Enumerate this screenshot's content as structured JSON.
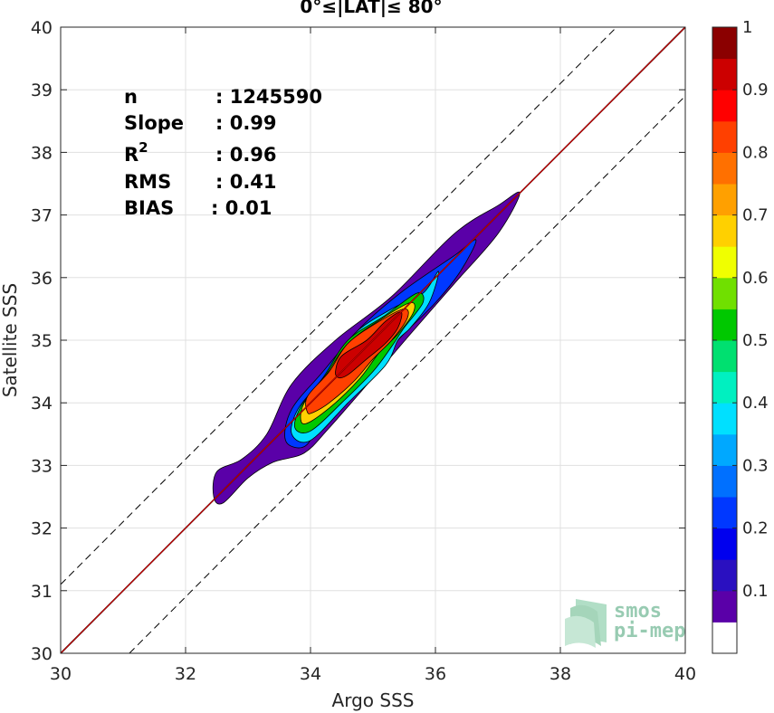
{
  "chart_data": {
    "type": "contour",
    "title": "0°≤|LAT|≤ 80°",
    "xlabel": "Argo SSS",
    "ylabel": "Satellite SSS",
    "xlim": [
      30,
      40
    ],
    "ylim": [
      30,
      40
    ],
    "xticks": [
      "30",
      "32",
      "34",
      "36",
      "38",
      "40"
    ],
    "yticks": [
      "30",
      "31",
      "32",
      "33",
      "34",
      "35",
      "36",
      "37",
      "38",
      "39",
      "40"
    ],
    "grid": true,
    "stats": {
      "n_label": "n",
      "n_value": ": 1245590",
      "slope_label": "Slope",
      "slope_value": ": 0.99",
      "r2_label": "R",
      "r2_sup": "2",
      "r2_value": ": 0.96",
      "rms_label": "RMS",
      "rms_value": ": 0.41",
      "bias_label": "BIAS",
      "bias_value": ": 0.01"
    },
    "lines": {
      "identity": {
        "x": [
          30,
          40
        ],
        "y": [
          30,
          40
        ],
        "color": "#cc0000"
      },
      "upper_dashed": {
        "x": [
          30,
          38.9
        ],
        "y": [
          31.1,
          40
        ],
        "color": "#000000"
      },
      "lower_dashed": {
        "x": [
          31.1,
          40
        ],
        "y": [
          30,
          38.9
        ],
        "color": "#000000"
      }
    },
    "colorbar": {
      "range": [
        0,
        1
      ],
      "levels": [
        0.05,
        0.1,
        0.15,
        0.2,
        0.25,
        0.3,
        0.35,
        0.4,
        0.45,
        0.5,
        0.55,
        0.6,
        0.65,
        0.7,
        0.75,
        0.8,
        0.85,
        0.9,
        0.95,
        1.0
      ],
      "tick_labels": [
        "0.1",
        "0.2",
        "0.3",
        "0.4",
        "0.5",
        "0.6",
        "0.7",
        "0.8",
        "0.9",
        "1"
      ],
      "colors": [
        "#ffffff",
        "#5a00a8",
        "#2a10c0",
        "#0000ee",
        "#0038ff",
        "#0070ff",
        "#00a8ff",
        "#00e0ff",
        "#00f0c0",
        "#00e070",
        "#00c800",
        "#70e000",
        "#f0ff00",
        "#ffd000",
        "#ffa000",
        "#ff7000",
        "#ff4000",
        "#ff0000",
        "#cc0000",
        "#8b0000"
      ]
    },
    "contours": [
      {
        "level": 0.05,
        "outline": [
          [
            32.45,
            32.5
          ],
          [
            32.5,
            32.9
          ],
          [
            32.9,
            33.1
          ],
          [
            33.3,
            33.5
          ],
          [
            33.7,
            34.3
          ],
          [
            34.4,
            35.0
          ],
          [
            35.3,
            35.7
          ],
          [
            36.3,
            36.7
          ],
          [
            37.0,
            37.15
          ],
          [
            37.35,
            37.35
          ],
          [
            37.0,
            36.7
          ],
          [
            36.3,
            35.9
          ],
          [
            35.6,
            35.1
          ],
          [
            35.0,
            34.4
          ],
          [
            34.3,
            33.6
          ],
          [
            33.9,
            33.2
          ],
          [
            33.4,
            33.05
          ],
          [
            33.0,
            32.8
          ],
          [
            32.6,
            32.4
          ]
        ]
      },
      {
        "level": 0.2,
        "outline": [
          [
            33.6,
            33.4
          ],
          [
            33.7,
            33.9
          ],
          [
            34.2,
            34.5
          ],
          [
            34.8,
            35.2
          ],
          [
            35.5,
            35.8
          ],
          [
            36.3,
            36.35
          ],
          [
            36.65,
            36.6
          ],
          [
            36.4,
            36.1
          ],
          [
            36.0,
            35.6
          ],
          [
            35.4,
            35.0
          ],
          [
            34.8,
            34.3
          ],
          [
            34.2,
            33.7
          ],
          [
            33.9,
            33.3
          ]
        ]
      },
      {
        "level": 0.35,
        "outline": [
          [
            33.7,
            33.5
          ],
          [
            33.8,
            33.9
          ],
          [
            34.2,
            34.4
          ],
          [
            34.7,
            35.1
          ],
          [
            35.3,
            35.5
          ],
          [
            35.8,
            35.75
          ],
          [
            36.05,
            36.1
          ],
          [
            35.9,
            35.6
          ],
          [
            35.6,
            35.2
          ],
          [
            35.4,
            35.0
          ],
          [
            35.2,
            34.6
          ],
          [
            34.6,
            34.0
          ],
          [
            34.0,
            33.4
          ]
        ]
      },
      {
        "level": 0.5,
        "outline": [
          [
            33.75,
            33.6
          ],
          [
            33.85,
            33.95
          ],
          [
            34.2,
            34.4
          ],
          [
            34.6,
            35.0
          ],
          [
            35.2,
            35.4
          ],
          [
            35.7,
            35.75
          ],
          [
            35.8,
            35.6
          ],
          [
            35.5,
            35.2
          ],
          [
            35.3,
            34.9
          ],
          [
            35.0,
            34.5
          ],
          [
            34.5,
            34.0
          ],
          [
            34.0,
            33.55
          ]
        ]
      },
      {
        "level": 0.65,
        "outline": [
          [
            33.85,
            33.7
          ],
          [
            33.9,
            34.0
          ],
          [
            34.25,
            34.45
          ],
          [
            34.6,
            34.95
          ],
          [
            35.15,
            35.35
          ],
          [
            35.6,
            35.6
          ],
          [
            35.65,
            35.45
          ],
          [
            35.4,
            35.1
          ],
          [
            35.1,
            34.8
          ],
          [
            34.8,
            34.4
          ],
          [
            34.4,
            34.0
          ],
          [
            34.0,
            33.7
          ]
        ]
      },
      {
        "level": 0.8,
        "outline": [
          [
            33.95,
            33.85
          ],
          [
            33.95,
            34.1
          ],
          [
            34.3,
            34.5
          ],
          [
            34.6,
            34.95
          ],
          [
            35.1,
            35.3
          ],
          [
            35.5,
            35.5
          ],
          [
            35.55,
            35.35
          ],
          [
            35.3,
            35.0
          ],
          [
            35.0,
            34.7
          ],
          [
            34.7,
            34.35
          ],
          [
            34.3,
            34.0
          ],
          [
            34.05,
            33.85
          ]
        ]
      },
      {
        "level": 0.9,
        "outline": [
          [
            34.4,
            34.5
          ],
          [
            34.5,
            34.75
          ],
          [
            34.9,
            35.0
          ],
          [
            35.2,
            35.3
          ],
          [
            35.45,
            35.45
          ],
          [
            35.4,
            35.2
          ],
          [
            35.2,
            34.95
          ],
          [
            34.9,
            34.7
          ],
          [
            34.6,
            34.45
          ],
          [
            34.45,
            34.4
          ]
        ]
      }
    ],
    "logo_line1": "smos",
    "logo_line2": "pi-mep"
  }
}
